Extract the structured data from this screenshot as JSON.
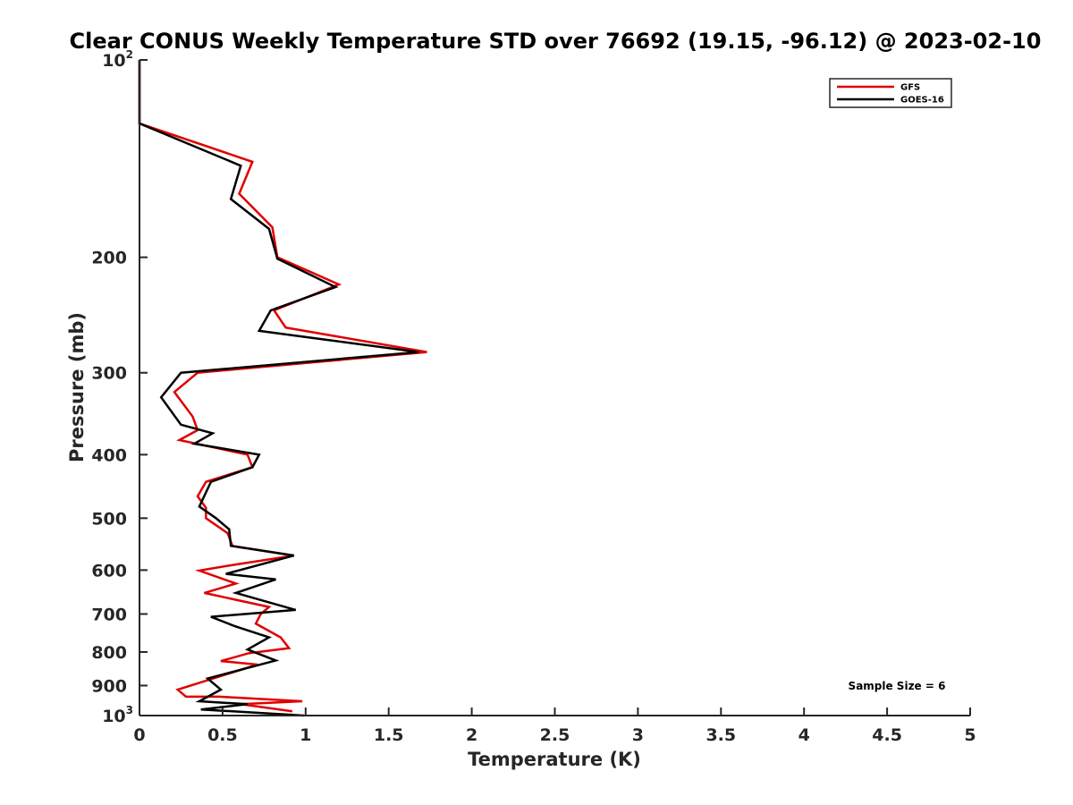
{
  "chart_data": {
    "type": "line",
    "title": "Clear CONUS Weekly Temperature STD over 76692 (19.15, -96.12) @ 2023-02-10",
    "xlabel": "Temperature (K)",
    "ylabel": "Pressure (mb)",
    "xlim": [
      0,
      5
    ],
    "ylim": [
      100,
      1000
    ],
    "y_scale": "log",
    "y_reversed": true,
    "grid": false,
    "legend_position": "top-right",
    "x_ticks": [
      "0",
      "0.5",
      "1",
      "1.5",
      "2",
      "2.5",
      "3",
      "3.5",
      "4",
      "4.5",
      "5"
    ],
    "y_ticks": [
      {
        "value": 100,
        "base": "10",
        "exp": "2"
      },
      {
        "value": 200,
        "base": "200",
        "exp": ""
      },
      {
        "value": 300,
        "base": "300",
        "exp": ""
      },
      {
        "value": 400,
        "base": "400",
        "exp": ""
      },
      {
        "value": 500,
        "base": "500",
        "exp": ""
      },
      {
        "value": 600,
        "base": "600",
        "exp": ""
      },
      {
        "value": 700,
        "base": "700",
        "exp": ""
      },
      {
        "value": 800,
        "base": "800",
        "exp": ""
      },
      {
        "value": 900,
        "base": "900",
        "exp": ""
      },
      {
        "value": 1000,
        "base": "10",
        "exp": "3"
      }
    ],
    "annotation": "Sample Size = 6",
    "series": [
      {
        "name": "GFS",
        "color": "#e00000",
        "points": [
          [
            0,
            100
          ],
          [
            0,
            125
          ],
          [
            0.68,
            143
          ],
          [
            0.6,
            160
          ],
          [
            0.8,
            180
          ],
          [
            0.83,
            200
          ],
          [
            1.2,
            220
          ],
          [
            0.81,
            241
          ],
          [
            0.88,
            256
          ],
          [
            1.73,
            279
          ],
          [
            0.35,
            300
          ],
          [
            0.21,
            321
          ],
          [
            0.32,
            350
          ],
          [
            0.35,
            367
          ],
          [
            0.24,
            380
          ],
          [
            0.65,
            400
          ],
          [
            0.68,
            418
          ],
          [
            0.4,
            440
          ],
          [
            0.35,
            463
          ],
          [
            0.4,
            482
          ],
          [
            0.4,
            500
          ],
          [
            0.53,
            527
          ],
          [
            0.56,
            551
          ],
          [
            0.93,
            570
          ],
          [
            0.55,
            590
          ],
          [
            0.36,
            601
          ],
          [
            0.58,
            629
          ],
          [
            0.39,
            650
          ],
          [
            0.78,
            683
          ],
          [
            0.73,
            700
          ],
          [
            0.7,
            724
          ],
          [
            0.85,
            760
          ],
          [
            0.9,
            789
          ],
          [
            0.66,
            803
          ],
          [
            0.49,
            826
          ],
          [
            0.71,
            836
          ],
          [
            0.23,
            913
          ],
          [
            0.28,
            936
          ],
          [
            0.48,
            936
          ],
          [
            0.98,
            951
          ],
          [
            0.61,
            961
          ],
          [
            0.92,
            985
          ]
        ]
      },
      {
        "name": "GOES-16",
        "color": "#000000",
        "points": [
          [
            0,
            100
          ],
          [
            0,
            125
          ],
          [
            0.61,
            145
          ],
          [
            0.55,
            163
          ],
          [
            0.78,
            181
          ],
          [
            0.83,
            201
          ],
          [
            1.18,
            222
          ],
          [
            0.79,
            241
          ],
          [
            0.72,
            259
          ],
          [
            1.68,
            279
          ],
          [
            0.25,
            300
          ],
          [
            0.13,
            327
          ],
          [
            0.25,
            360
          ],
          [
            0.44,
            371
          ],
          [
            0.33,
            385
          ],
          [
            0.72,
            400
          ],
          [
            0.68,
            418
          ],
          [
            0.43,
            440
          ],
          [
            0.36,
            480
          ],
          [
            0.46,
            500
          ],
          [
            0.54,
            520
          ],
          [
            0.55,
            551
          ],
          [
            0.93,
            570
          ],
          [
            0.52,
            608
          ],
          [
            0.82,
            620
          ],
          [
            0.58,
            650
          ],
          [
            0.94,
            690
          ],
          [
            0.43,
            707
          ],
          [
            0.57,
            730
          ],
          [
            0.78,
            760
          ],
          [
            0.65,
            793
          ],
          [
            0.82,
            824
          ],
          [
            0.41,
            878
          ],
          [
            0.49,
            913
          ],
          [
            0.36,
            951
          ],
          [
            0.65,
            961
          ],
          [
            0.37,
            979
          ],
          [
            0.99,
            1000
          ]
        ]
      }
    ]
  }
}
